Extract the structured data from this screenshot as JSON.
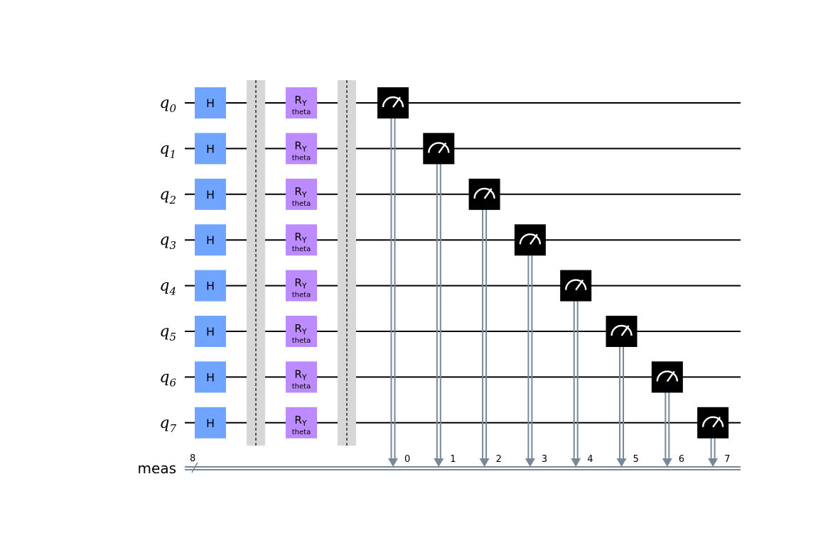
{
  "circuit": {
    "qubits": [
      {
        "name": "q",
        "index": "0"
      },
      {
        "name": "q",
        "index": "1"
      },
      {
        "name": "q",
        "index": "2"
      },
      {
        "name": "q",
        "index": "3"
      },
      {
        "name": "q",
        "index": "4"
      },
      {
        "name": "q",
        "index": "5"
      },
      {
        "name": "q",
        "index": "6"
      },
      {
        "name": "q",
        "index": "7"
      }
    ],
    "classical_register": {
      "name": "meas",
      "size": "8"
    },
    "gate_columns": [
      {
        "type": "gate",
        "label": "H"
      },
      {
        "type": "barrier"
      },
      {
        "type": "rotation",
        "label": "R",
        "axis": "Y",
        "param": "theta"
      },
      {
        "type": "barrier"
      }
    ],
    "measurements": [
      {
        "qubit": 0,
        "bit": "0"
      },
      {
        "qubit": 1,
        "bit": "1"
      },
      {
        "qubit": 2,
        "bit": "2"
      },
      {
        "qubit": 3,
        "bit": "3"
      },
      {
        "qubit": 4,
        "bit": "4"
      },
      {
        "qubit": 5,
        "bit": "5"
      },
      {
        "qubit": 6,
        "bit": "6"
      },
      {
        "qubit": 7,
        "bit": "7"
      }
    ],
    "colors": {
      "h_gate": "#6fa4ff",
      "ry_gate": "#bb8bff",
      "barrier": "#d7d7d7",
      "measure": "#000000",
      "classical_wire": "#778899",
      "wire": "#000000"
    }
  }
}
